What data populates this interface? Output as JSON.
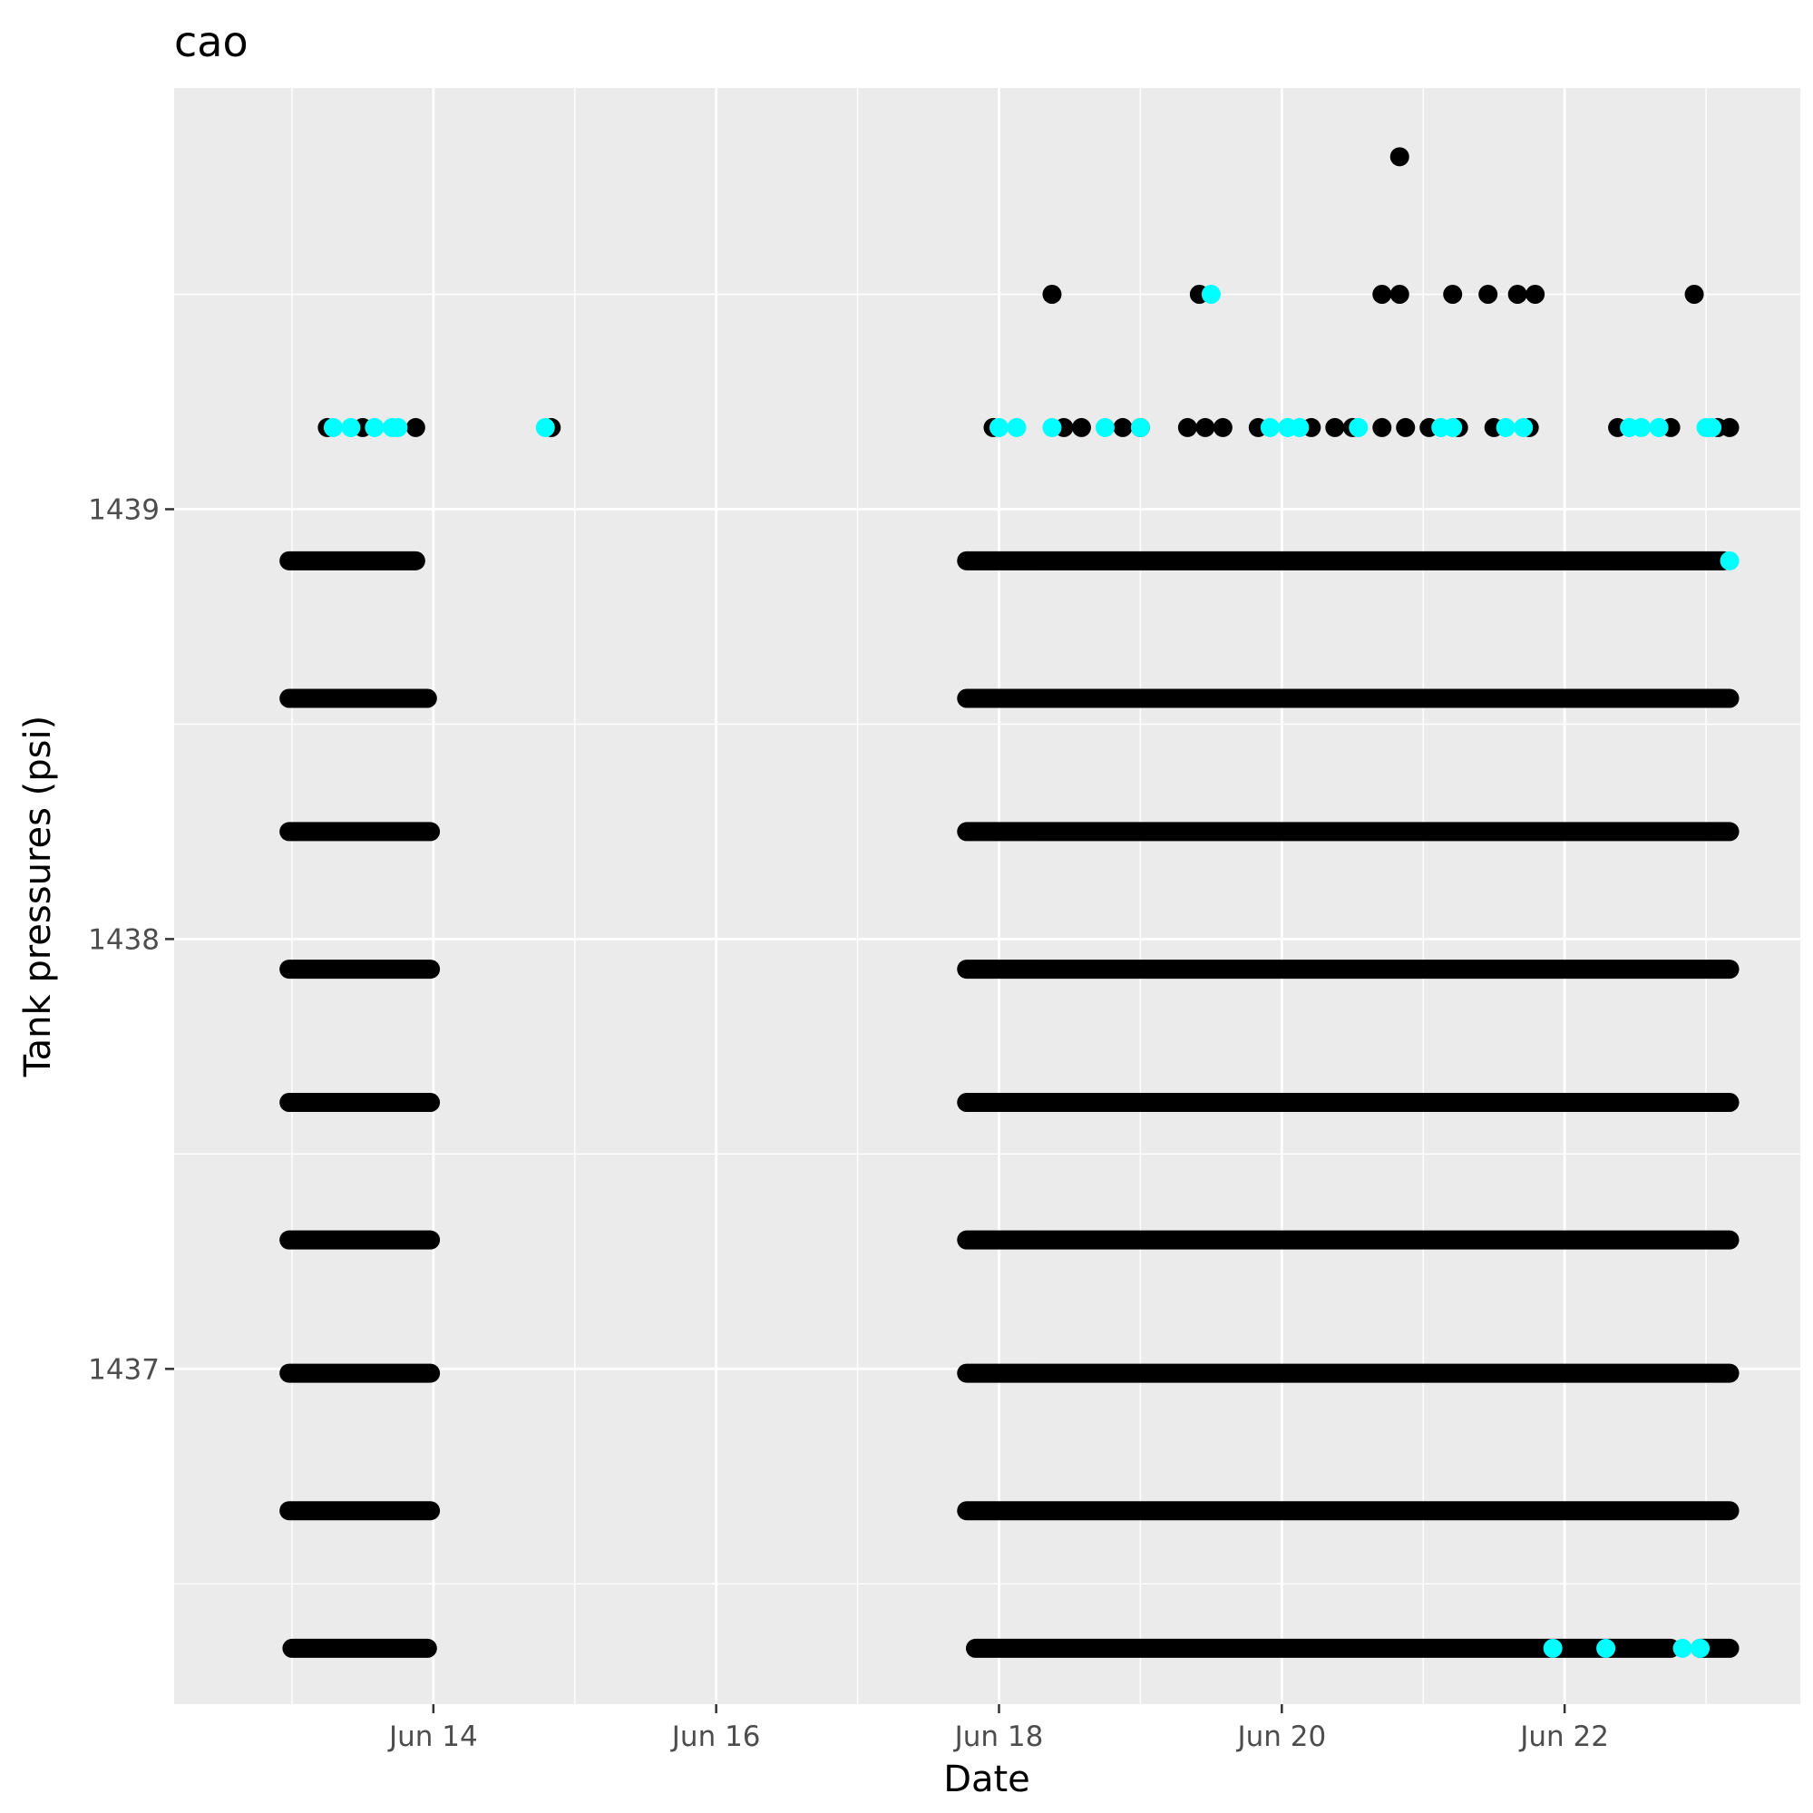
{
  "chart_data": {
    "type": "scatter",
    "title": "cao",
    "xlabel": "Date",
    "ylabel": "Tank pressures (psi)",
    "x_ticks": [
      "Jun 14",
      "Jun 16",
      "Jun 18",
      "Jun 20",
      "Jun 22"
    ],
    "y_ticks": [
      "1437",
      "1438",
      "1439"
    ],
    "xlim": [
      "2023-06-12T04:00",
      "2023-06-23T16:00"
    ],
    "ylim": [
      1436.22,
      1439.98
    ],
    "grid": true,
    "legend": "none",
    "colors": {
      "panel": "#ebebeb",
      "grid": "#ffffff",
      "primary": "#000000",
      "secondary": "#00ffff"
    },
    "levels": [
      1436.35,
      1436.67,
      1436.99,
      1437.3,
      1437.62,
      1437.93,
      1438.25,
      1438.56,
      1438.88,
      1439.19,
      1439.5,
      1439.82
    ],
    "series": [
      {
        "color": "#000000",
        "runs": [
          {
            "y": 1436.35,
            "from": "2023-06-13T00:00",
            "to": "2023-06-13T23:00"
          },
          {
            "y": 1436.67,
            "from": "2023-06-12T23:30",
            "to": "2023-06-13T23:30"
          },
          {
            "y": 1436.99,
            "from": "2023-06-12T23:30",
            "to": "2023-06-13T23:30"
          },
          {
            "y": 1437.3,
            "from": "2023-06-12T23:30",
            "to": "2023-06-13T23:30"
          },
          {
            "y": 1437.62,
            "from": "2023-06-12T23:30",
            "to": "2023-06-13T23:30"
          },
          {
            "y": 1437.93,
            "from": "2023-06-12T23:30",
            "to": "2023-06-13T23:30"
          },
          {
            "y": 1438.25,
            "from": "2023-06-12T23:30",
            "to": "2023-06-13T23:30"
          },
          {
            "y": 1438.56,
            "from": "2023-06-12T23:30",
            "to": "2023-06-13T23:00"
          },
          {
            "y": 1438.88,
            "from": "2023-06-12T23:30",
            "to": "2023-06-13T21:00"
          },
          {
            "y": 1436.35,
            "from": "2023-06-17T20:00",
            "to": "2023-06-22T18:00"
          },
          {
            "y": 1436.35,
            "from": "2023-06-22T23:00",
            "to": "2023-06-23T04:00"
          },
          {
            "y": 1436.67,
            "from": "2023-06-17T18:30",
            "to": "2023-06-23T04:00"
          },
          {
            "y": 1436.99,
            "from": "2023-06-17T18:30",
            "to": "2023-06-23T04:00"
          },
          {
            "y": 1437.3,
            "from": "2023-06-17T18:30",
            "to": "2023-06-23T04:00"
          },
          {
            "y": 1437.62,
            "from": "2023-06-17T18:30",
            "to": "2023-06-23T04:00"
          },
          {
            "y": 1437.93,
            "from": "2023-06-17T18:30",
            "to": "2023-06-23T04:00"
          },
          {
            "y": 1438.25,
            "from": "2023-06-17T18:30",
            "to": "2023-06-23T04:00"
          },
          {
            "y": 1438.56,
            "from": "2023-06-17T18:30",
            "to": "2023-06-23T04:00"
          },
          {
            "y": 1438.88,
            "from": "2023-06-17T18:30",
            "to": "2023-06-23T03:00"
          }
        ],
        "points": [
          {
            "x": "2023-06-13T06:00",
            "y": 1439.19
          },
          {
            "x": "2023-06-13T12:00",
            "y": 1439.19
          },
          {
            "x": "2023-06-13T21:00",
            "y": 1439.19
          },
          {
            "x": "2023-06-14T20:00",
            "y": 1439.19
          },
          {
            "x": "2023-06-17T23:00",
            "y": 1439.19
          },
          {
            "x": "2023-06-18T11:00",
            "y": 1439.19
          },
          {
            "x": "2023-06-18T14:00",
            "y": 1439.19
          },
          {
            "x": "2023-06-18T21:00",
            "y": 1439.19
          },
          {
            "x": "2023-06-19T00:00",
            "y": 1439.19
          },
          {
            "x": "2023-06-19T08:00",
            "y": 1439.19
          },
          {
            "x": "2023-06-19T11:00",
            "y": 1439.19
          },
          {
            "x": "2023-06-19T14:00",
            "y": 1439.19
          },
          {
            "x": "2023-06-19T20:00",
            "y": 1439.19
          },
          {
            "x": "2023-06-20T05:00",
            "y": 1439.19
          },
          {
            "x": "2023-06-20T09:00",
            "y": 1439.19
          },
          {
            "x": "2023-06-20T12:00",
            "y": 1439.19
          },
          {
            "x": "2023-06-20T17:00",
            "y": 1439.19
          },
          {
            "x": "2023-06-20T21:00",
            "y": 1439.19
          },
          {
            "x": "2023-06-21T01:00",
            "y": 1439.19
          },
          {
            "x": "2023-06-21T06:00",
            "y": 1439.19
          },
          {
            "x": "2023-06-21T12:00",
            "y": 1439.19
          },
          {
            "x": "2023-06-21T18:00",
            "y": 1439.19
          },
          {
            "x": "2023-06-22T09:00",
            "y": 1439.19
          },
          {
            "x": "2023-06-22T18:00",
            "y": 1439.19
          },
          {
            "x": "2023-06-23T02:00",
            "y": 1439.19
          },
          {
            "x": "2023-06-23T04:00",
            "y": 1439.19
          },
          {
            "x": "2023-06-18T09:00",
            "y": 1439.5
          },
          {
            "x": "2023-06-19T10:00",
            "y": 1439.5
          },
          {
            "x": "2023-06-20T17:00",
            "y": 1439.5
          },
          {
            "x": "2023-06-20T20:00",
            "y": 1439.5
          },
          {
            "x": "2023-06-21T05:00",
            "y": 1439.5
          },
          {
            "x": "2023-06-21T11:00",
            "y": 1439.5
          },
          {
            "x": "2023-06-21T16:00",
            "y": 1439.5
          },
          {
            "x": "2023-06-21T19:00",
            "y": 1439.5
          },
          {
            "x": "2023-06-22T22:00",
            "y": 1439.5
          },
          {
            "x": "2023-06-20T20:00",
            "y": 1439.82
          }
        ]
      },
      {
        "color": "#00ffff",
        "points": [
          {
            "x": "2023-06-13T07:00",
            "y": 1439.19
          },
          {
            "x": "2023-06-13T10:00",
            "y": 1439.19
          },
          {
            "x": "2023-06-13T14:00",
            "y": 1439.19
          },
          {
            "x": "2023-06-13T17:00",
            "y": 1439.19
          },
          {
            "x": "2023-06-13T18:00",
            "y": 1439.19
          },
          {
            "x": "2023-06-14T19:00",
            "y": 1439.19
          },
          {
            "x": "2023-06-18T00:00",
            "y": 1439.19
          },
          {
            "x": "2023-06-18T03:00",
            "y": 1439.19
          },
          {
            "x": "2023-06-18T09:00",
            "y": 1439.19
          },
          {
            "x": "2023-06-18T18:00",
            "y": 1439.19
          },
          {
            "x": "2023-06-19T00:00",
            "y": 1439.19
          },
          {
            "x": "2023-06-19T22:00",
            "y": 1439.19
          },
          {
            "x": "2023-06-20T01:00",
            "y": 1439.19
          },
          {
            "x": "2023-06-20T03:00",
            "y": 1439.19
          },
          {
            "x": "2023-06-20T13:00",
            "y": 1439.19
          },
          {
            "x": "2023-06-21T03:00",
            "y": 1439.19
          },
          {
            "x": "2023-06-21T05:00",
            "y": 1439.19
          },
          {
            "x": "2023-06-21T14:00",
            "y": 1439.19
          },
          {
            "x": "2023-06-21T17:00",
            "y": 1439.19
          },
          {
            "x": "2023-06-22T11:00",
            "y": 1439.19
          },
          {
            "x": "2023-06-22T13:00",
            "y": 1439.19
          },
          {
            "x": "2023-06-22T16:00",
            "y": 1439.19
          },
          {
            "x": "2023-06-23T00:00",
            "y": 1439.19
          },
          {
            "x": "2023-06-23T01:00",
            "y": 1439.19
          },
          {
            "x": "2023-06-19T12:00",
            "y": 1439.5
          },
          {
            "x": "2023-06-23T04:00",
            "y": 1438.88
          },
          {
            "x": "2023-06-22T23:00",
            "y": 1436.35
          },
          {
            "x": "2023-06-22T20:00",
            "y": 1436.35
          },
          {
            "x": "2023-06-22T07:00",
            "y": 1436.35
          },
          {
            "x": "2023-06-21T22:00",
            "y": 1436.35
          }
        ]
      }
    ]
  }
}
